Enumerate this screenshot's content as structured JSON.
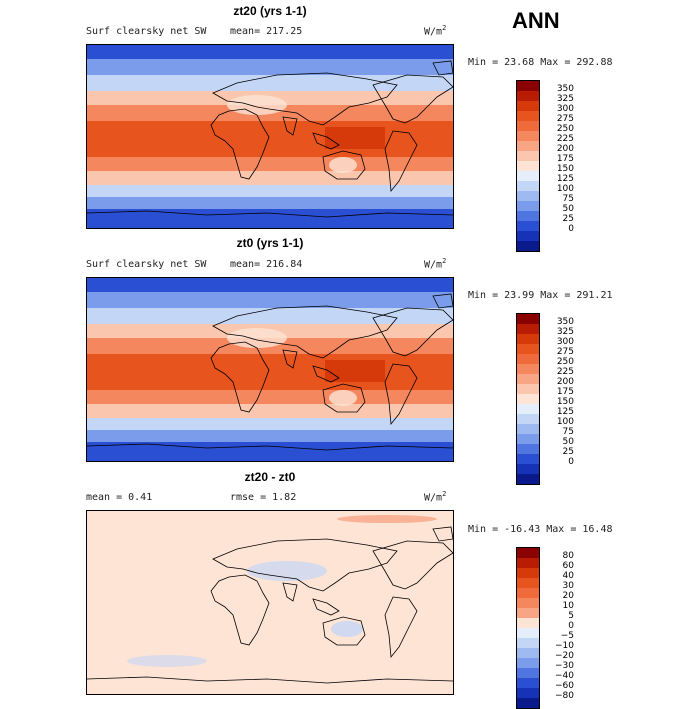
{
  "header": {
    "season": "ANN"
  },
  "panels": [
    {
      "title": "zt20 (yrs 1-1)",
      "variable": "Surf clearsky net SW",
      "stat_text": "mean= 217.25",
      "unit": "W/m",
      "unit_sup": "2",
      "minmax": "Min =  23.68 Max = 292.88",
      "kind": "abs"
    },
    {
      "title": "zt0 (yrs 1-1)",
      "variable": "Surf clearsky net SW",
      "stat_text": "mean= 216.84",
      "unit": "W/m",
      "unit_sup": "2",
      "minmax": "Min =  23.99 Max = 291.21",
      "kind": "abs"
    },
    {
      "title": "zt20 - zt0",
      "mean_text": "mean =    0.41",
      "rmse_text": "rmse =    1.82",
      "unit": "W/m",
      "unit_sup": "2",
      "minmax": "Min = -16.43 Max =  16.48",
      "kind": "diff"
    }
  ],
  "colorbars": {
    "abs": {
      "labels": [
        "350",
        "325",
        "300",
        "275",
        "250",
        "225",
        "200",
        "175",
        "150",
        "125",
        "100",
        "75",
        "50",
        "25",
        "0"
      ],
      "colors": [
        "#8b0000",
        "#b81d04",
        "#d63a0b",
        "#e8541e",
        "#f06b3c",
        "#f5875e",
        "#f7a585",
        "#fac6ad",
        "#fde4d5",
        "#e6eefb",
        "#c4d6f6",
        "#9fbaf0",
        "#7a9cea",
        "#4f75e0",
        "#2a4fd2",
        "#1633b8",
        "#0a1a8c"
      ]
    },
    "diff": {
      "labels": [
        "80",
        "60",
        "40",
        "30",
        "20",
        "10",
        "5",
        "0",
        "−5",
        "−10",
        "−20",
        "−30",
        "−40",
        "−60",
        "−80"
      ],
      "colors": [
        "#8b0000",
        "#b81d04",
        "#d63a0b",
        "#e8541e",
        "#f06b3c",
        "#f5875e",
        "#f7a585",
        "#fde4d5",
        "#e6eefb",
        "#c4d6f6",
        "#9fbaf0",
        "#7a9cea",
        "#4f75e0",
        "#2a4fd2",
        "#1633b8",
        "#0a1a8c"
      ]
    }
  },
  "map_colors": {
    "polar": "#2a4fd2",
    "subpolar": "#7a9cea",
    "midlat": "#c4d6f6",
    "sub": "#fac6ad",
    "warm": "#f5875e",
    "tropic": "#e8541e",
    "deep": "#d63a0b",
    "land_light": "#fde4d5",
    "diff_bg": "#fde4d5",
    "diff_blue": "#c4d6f6",
    "diff_pos": "#f7a585"
  }
}
